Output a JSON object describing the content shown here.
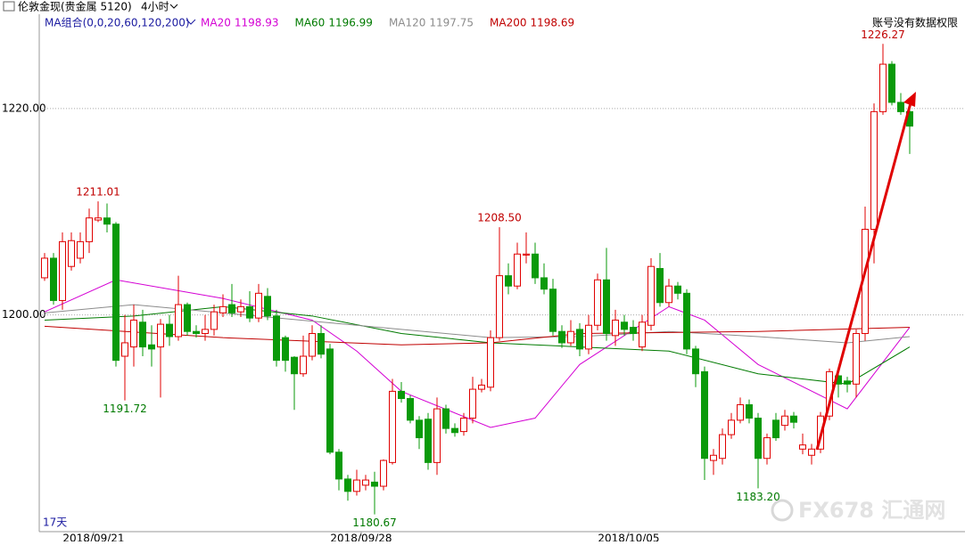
{
  "chart_data": {
    "type": "candlestick",
    "title": "伦敦金现(贵金属 5120)",
    "period": "4小时",
    "ma_title": "MA组合(0,0,20,60,120,200)",
    "notice": "账号没有数据权限",
    "span": "17天",
    "watermark": "FX678 汇通网",
    "ylim": [
      1179,
      1227.5
    ],
    "yticks": [
      {
        "value": 1200,
        "label": "1200.00"
      },
      {
        "value": 1220,
        "label": "1220.00"
      }
    ],
    "grid": true,
    "up_color": "#e00000",
    "down_color": "#0a9a0a",
    "candles": [
      [
        1203.6,
        1206.0,
        1203.3,
        1205.5
      ],
      [
        1205.5,
        1206.0,
        1201.0,
        1201.4
      ],
      [
        1201.4,
        1208.0,
        1200.5,
        1207.1
      ],
      [
        1204.7,
        1208.0,
        1204.3,
        1207.2
      ],
      [
        1205.5,
        1208.0,
        1205.0,
        1207.1
      ],
      [
        1207.1,
        1210.3,
        1206.0,
        1209.4
      ],
      [
        1209.2,
        1211.01,
        1209.0,
        1209.4
      ],
      [
        1209.4,
        1210.8,
        1208.0,
        1208.8
      ],
      [
        1208.8,
        1209.0,
        1195.0,
        1195.6
      ],
      [
        1196.0,
        1200.0,
        1191.72,
        1197.3
      ],
      [
        1196.9,
        1201.0,
        1195.0,
        1199.5
      ],
      [
        1199.3,
        1200.5,
        1196.0,
        1196.9
      ],
      [
        1197.1,
        1199.0,
        1195.0,
        1196.7
      ],
      [
        1196.9,
        1199.6,
        1192.0,
        1199.1
      ],
      [
        1199.1,
        1200.0,
        1197.0,
        1197.9
      ],
      [
        1197.9,
        1203.8,
        1197.5,
        1201.0
      ],
      [
        1201.0,
        1201.2,
        1198.0,
        1198.4
      ],
      [
        1198.4,
        1199.0,
        1197.8,
        1198.2
      ],
      [
        1198.2,
        1200.0,
        1197.5,
        1198.6
      ],
      [
        1198.6,
        1201.0,
        1198.0,
        1200.3
      ],
      [
        1200.2,
        1202.0,
        1199.8,
        1200.8
      ],
      [
        1201.0,
        1203.0,
        1199.8,
        1200.2
      ],
      [
        1200.3,
        1201.5,
        1199.8,
        1200.8
      ],
      [
        1200.8,
        1202.3,
        1199.3,
        1199.7
      ],
      [
        1199.7,
        1203.0,
        1199.3,
        1202.1
      ],
      [
        1201.8,
        1202.6,
        1199.5,
        1199.9
      ],
      [
        1199.9,
        1200.5,
        1195.0,
        1195.6
      ],
      [
        1197.8,
        1198.0,
        1194.5,
        1195.6
      ],
      [
        1195.9,
        1196.0,
        1190.8,
        1194.3
      ],
      [
        1194.3,
        1198.0,
        1194.0,
        1196.0
      ],
      [
        1196.0,
        1199.0,
        1195.6,
        1198.2
      ],
      [
        1198.2,
        1199.0,
        1195.8,
        1196.2
      ],
      [
        1196.7,
        1197.2,
        1186.5,
        1186.7
      ],
      [
        1186.7,
        1187.0,
        1183.0,
        1184.1
      ],
      [
        1184.1,
        1184.5,
        1182.0,
        1182.9
      ],
      [
        1182.9,
        1185.0,
        1182.5,
        1184.0
      ],
      [
        1183.5,
        1184.5,
        1183.0,
        1184.0
      ],
      [
        1183.8,
        1184.8,
        1180.67,
        1183.4
      ],
      [
        1183.4,
        1186.0,
        1183.0,
        1185.9
      ],
      [
        1185.7,
        1193.8,
        1185.5,
        1192.6
      ],
      [
        1192.6,
        1193.5,
        1191.5,
        1191.9
      ],
      [
        1191.9,
        1192.2,
        1189.5,
        1189.8
      ],
      [
        1189.8,
        1190.2,
        1187.0,
        1188.1
      ],
      [
        1189.9,
        1190.5,
        1185.0,
        1185.7
      ],
      [
        1185.7,
        1192.0,
        1184.5,
        1190.9
      ],
      [
        1190.9,
        1191.3,
        1188.5,
        1189.0
      ],
      [
        1189.0,
        1189.5,
        1188.2,
        1188.6
      ],
      [
        1188.7,
        1190.5,
        1188.3,
        1190.0
      ],
      [
        1190.0,
        1194.0,
        1189.5,
        1192.8
      ],
      [
        1192.8,
        1193.8,
        1192.5,
        1193.2
      ],
      [
        1193.0,
        1198.5,
        1192.6,
        1197.8
      ],
      [
        1197.8,
        1208.5,
        1197.5,
        1203.8
      ],
      [
        1203.8,
        1205.0,
        1202.0,
        1202.8
      ],
      [
        1202.8,
        1207.0,
        1202.5,
        1205.9
      ],
      [
        1205.8,
        1208.0,
        1205.0,
        1205.9
      ],
      [
        1205.9,
        1207.0,
        1203.0,
        1203.6
      ],
      [
        1203.6,
        1205.0,
        1202.0,
        1202.5
      ],
      [
        1202.5,
        1203.5,
        1198.0,
        1198.4
      ],
      [
        1198.4,
        1199.0,
        1196.8,
        1197.3
      ],
      [
        1197.3,
        1199.5,
        1197.0,
        1198.4
      ],
      [
        1198.6,
        1199.2,
        1196.0,
        1196.7
      ],
      [
        1196.7,
        1200.0,
        1196.2,
        1199.0
      ],
      [
        1199.0,
        1204.0,
        1198.5,
        1203.4
      ],
      [
        1203.4,
        1206.5,
        1197.5,
        1198.2
      ],
      [
        1198.0,
        1200.5,
        1197.0,
        1199.5
      ],
      [
        1199.3,
        1200.0,
        1198.0,
        1198.6
      ],
      [
        1198.8,
        1199.5,
        1197.5,
        1198.2
      ],
      [
        1196.9,
        1200.0,
        1196.5,
        1199.3
      ],
      [
        1199.0,
        1205.5,
        1198.5,
        1204.7
      ],
      [
        1204.5,
        1206.0,
        1200.8,
        1201.2
      ],
      [
        1201.2,
        1203.5,
        1200.8,
        1202.8
      ],
      [
        1202.8,
        1203.2,
        1201.5,
        1202.1
      ],
      [
        1202.1,
        1202.5,
        1196.2,
        1196.7
      ],
      [
        1196.7,
        1197.0,
        1193.0,
        1194.3
      ],
      [
        1194.5,
        1195.0,
        1184.0,
        1186.1
      ],
      [
        1185.9,
        1187.0,
        1184.5,
        1186.4
      ],
      [
        1186.1,
        1189.0,
        1185.5,
        1188.4
      ],
      [
        1188.4,
        1190.5,
        1188.0,
        1189.8
      ],
      [
        1189.8,
        1192.0,
        1189.5,
        1191.3
      ],
      [
        1191.3,
        1191.8,
        1189.5,
        1190.0
      ],
      [
        1190.0,
        1190.5,
        1183.2,
        1186.1
      ],
      [
        1186.1,
        1188.5,
        1185.5,
        1188.1
      ],
      [
        1189.8,
        1190.5,
        1187.8,
        1188.1
      ],
      [
        1189.3,
        1190.8,
        1188.8,
        1190.2
      ],
      [
        1190.2,
        1190.6,
        1189.0,
        1189.6
      ],
      [
        1187.0,
        1188.5,
        1186.5,
        1187.4
      ],
      [
        1186.4,
        1187.5,
        1185.5,
        1187.0
      ],
      [
        1187.0,
        1190.6,
        1186.6,
        1190.2
      ],
      [
        1190.2,
        1194.8,
        1189.8,
        1194.5
      ],
      [
        1194.1,
        1194.5,
        1192.0,
        1193.3
      ],
      [
        1193.6,
        1194.0,
        1192.5,
        1193.3
      ],
      [
        1193.3,
        1198.6,
        1192.0,
        1198.2
      ],
      [
        1198.2,
        1210.5,
        1197.5,
        1208.3
      ],
      [
        1208.3,
        1220.5,
        1205.0,
        1219.7
      ],
      [
        1219.7,
        1226.27,
        1219.4,
        1224.3
      ],
      [
        1224.3,
        1224.6,
        1220.3,
        1220.6
      ],
      [
        1220.6,
        1221.5,
        1219.4,
        1219.7
      ],
      [
        1219.7,
        1220.0,
        1215.6,
        1218.3
      ]
    ],
    "annotations": [
      {
        "candle": 94,
        "value": 1226.27,
        "label": "1226.27"
      },
      {
        "candle": 6,
        "value": 1211.01,
        "label": "1211.01"
      },
      {
        "candle": 51,
        "value": 1208.5,
        "label": "1208.50"
      },
      {
        "candle": 9,
        "value": 1191.72,
        "label": "1191.72"
      },
      {
        "candle": 37,
        "value": 1180.67,
        "label": "1180.67"
      },
      {
        "candle": 80,
        "value": 1183.2,
        "label": "1183.20"
      }
    ],
    "dates": [
      {
        "candle": 5,
        "label": "2018/09/21"
      },
      {
        "candle": 35,
        "label": "2018/09/28"
      },
      {
        "candle": 65,
        "label": "2018/10/05"
      }
    ],
    "series": [
      {
        "name": "MA20",
        "color": "#d400d4",
        "last": 1198.93,
        "x": [
          0,
          8,
          20,
          30,
          35,
          40,
          50,
          55,
          60,
          70,
          74,
          80,
          90,
          97
        ],
        "values": [
          1200.3,
          1203.4,
          1201.6,
          1199.5,
          1196.5,
          1192.6,
          1189.1,
          1190.0,
          1195.2,
          1200.8,
          1199.5,
          1195.2,
          1190.9,
          1198.8
        ]
      },
      {
        "name": "MA60",
        "color": "#007a00",
        "last": 1196.99,
        "x": [
          0,
          10,
          20,
          30,
          40,
          50,
          60,
          70,
          80,
          90,
          97
        ],
        "values": [
          1199.5,
          1199.9,
          1200.8,
          1199.9,
          1198.2,
          1197.3,
          1196.9,
          1196.5,
          1194.3,
          1193.3,
          1196.9
        ]
      },
      {
        "name": "MA120",
        "color": "#8c8c8c",
        "last": 1197.75,
        "x": [
          0,
          10,
          20,
          40,
          50,
          60,
          70,
          80,
          90,
          97
        ],
        "values": [
          1200.2,
          1201.0,
          1200.2,
          1198.6,
          1197.8,
          1197.9,
          1198.4,
          1197.9,
          1197.3,
          1197.9
        ]
      },
      {
        "name": "MA200",
        "color": "#c00000",
        "last": 1198.69,
        "x": [
          0,
          20,
          40,
          50,
          60,
          80,
          97
        ],
        "values": [
          1198.9,
          1197.8,
          1197.1,
          1197.3,
          1198.2,
          1198.4,
          1198.8
        ]
      }
    ]
  }
}
